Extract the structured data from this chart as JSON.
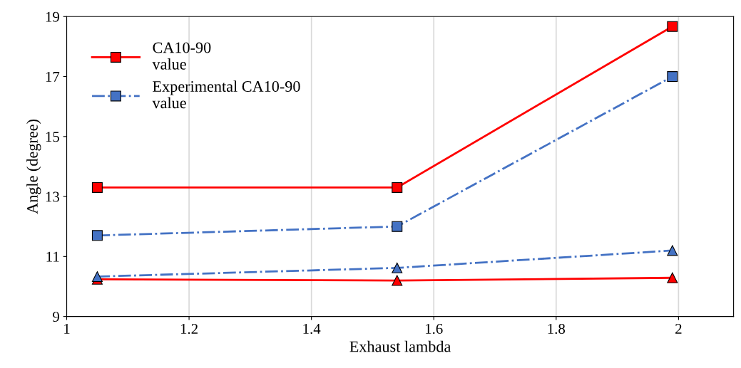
{
  "chart_data": {
    "type": "line",
    "xlabel": "Exhaust lambda",
    "ylabel": "Angle (degree)",
    "x": [
      1.05,
      1.54,
      1.99
    ],
    "series": [
      {
        "name": "CA10-90\nvalue",
        "color": "#ff0000",
        "values": [
          13.3,
          13.3,
          18.67
        ],
        "marker": "square",
        "line_style": "solid"
      },
      {
        "name": "Experimental CA10-90\nvalue",
        "color": "#4472c4",
        "values": [
          11.7,
          12.0,
          17.0
        ],
        "marker": "square",
        "line_style": "dashdot"
      },
      {
        "color": "#ff0000",
        "values": [
          10.24,
          10.2,
          10.29
        ],
        "marker": "triangle",
        "line_style": "solid"
      },
      {
        "color": "#4472c4",
        "values": [
          10.33,
          10.62,
          11.2
        ],
        "marker": "triangle",
        "line_style": "dashdot"
      }
    ],
    "xlim": [
      1,
      2.09
    ],
    "xticks": [
      1,
      1.2,
      1.4,
      1.6,
      1.8,
      2
    ],
    "ylim": [
      9,
      19
    ],
    "yticks": [
      9,
      11,
      13,
      15,
      17,
      19
    ],
    "grid": "x",
    "legend": "top left"
  }
}
